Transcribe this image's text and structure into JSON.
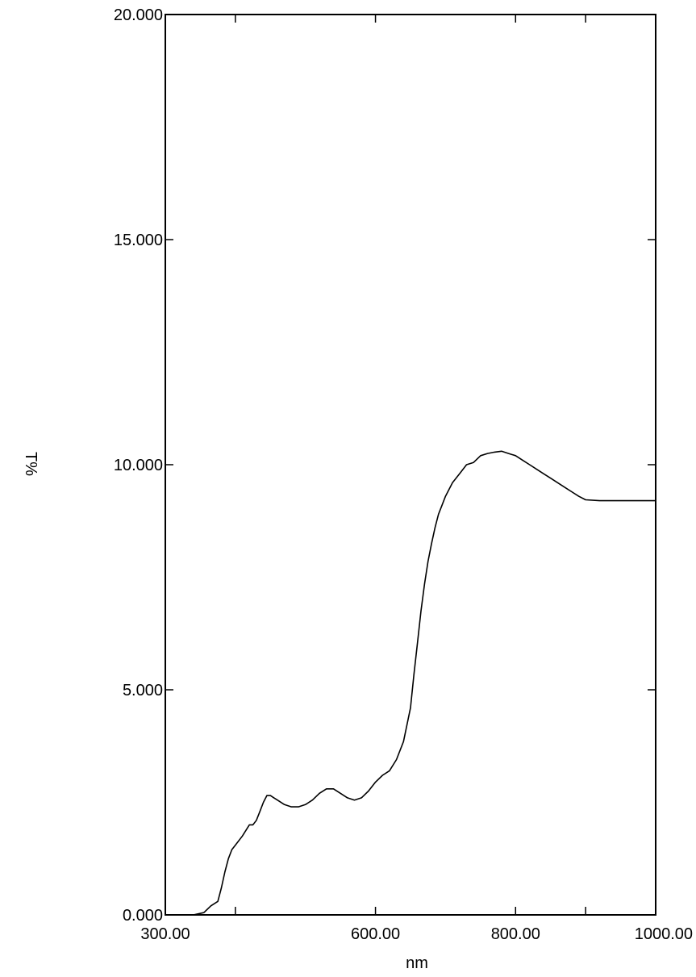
{
  "chart_data": {
    "type": "line",
    "title": "",
    "xlabel": "nm",
    "ylabel": "T%",
    "xlim": [
      300,
      1000
    ],
    "ylim": [
      0,
      20
    ],
    "x_ticks": [
      {
        "value": 300,
        "label": "300.00"
      },
      {
        "value": 400,
        "label": ""
      },
      {
        "value": 600,
        "label": "600.00"
      },
      {
        "value": 800,
        "label": "800.00"
      },
      {
        "value": 900,
        "label": ""
      },
      {
        "value": 1000,
        "label": "1000.00"
      }
    ],
    "x_tick_labels": [
      "300.00",
      "600.00",
      "800.00",
      "1000.00"
    ],
    "y_ticks": [
      0,
      5,
      10,
      15,
      20
    ],
    "y_tick_labels": [
      "0.000",
      "5.000",
      "10.000",
      "15.000",
      "20.000"
    ],
    "grid": false,
    "legend": "none",
    "colors": {
      "line": "#000000",
      "axes": "#000000"
    },
    "series": [
      {
        "name": "",
        "x": [
          300,
          340,
          355,
          365,
          375,
          380,
          385,
          390,
          395,
          400,
          410,
          420,
          425,
          430,
          435,
          440,
          445,
          450,
          455,
          460,
          470,
          480,
          490,
          500,
          510,
          520,
          530,
          540,
          550,
          560,
          570,
          580,
          590,
          600,
          610,
          620,
          630,
          640,
          650,
          655,
          660,
          665,
          670,
          675,
          680,
          685,
          690,
          695,
          700,
          710,
          720,
          730,
          740,
          750,
          760,
          770,
          780,
          790,
          800,
          810,
          820,
          830,
          840,
          850,
          860,
          870,
          880,
          890,
          900,
          920,
          940,
          960,
          980,
          1000
        ],
        "y": [
          0,
          0,
          0.05,
          0.2,
          0.3,
          0.6,
          0.95,
          1.25,
          1.45,
          1.55,
          1.75,
          2.0,
          2.0,
          2.1,
          2.3,
          2.5,
          2.65,
          2.65,
          2.6,
          2.55,
          2.45,
          2.4,
          2.4,
          2.45,
          2.55,
          2.7,
          2.8,
          2.8,
          2.7,
          2.6,
          2.55,
          2.6,
          2.75,
          2.95,
          3.1,
          3.2,
          3.45,
          3.85,
          4.6,
          5.35,
          6.05,
          6.75,
          7.35,
          7.85,
          8.25,
          8.6,
          8.9,
          9.1,
          9.3,
          9.6,
          9.8,
          10.0,
          10.05,
          10.2,
          10.25,
          10.28,
          10.3,
          10.25,
          10.2,
          10.1,
          10.0,
          9.9,
          9.8,
          9.7,
          9.6,
          9.5,
          9.4,
          9.3,
          9.22,
          9.2,
          9.2,
          9.2,
          9.2,
          9.2
        ]
      }
    ]
  }
}
